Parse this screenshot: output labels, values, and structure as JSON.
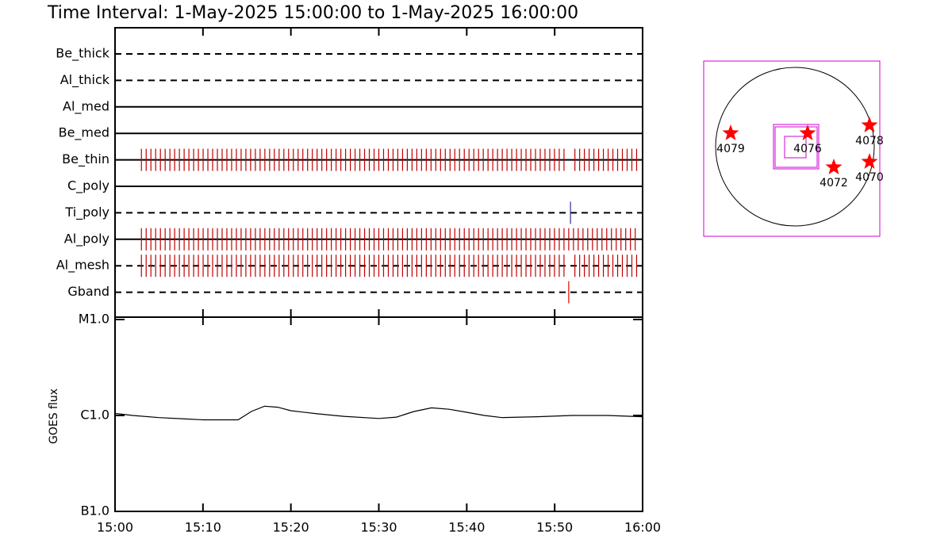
{
  "title": "Time Interval:  1-May-2025 15:00:00 to  1-May-2025 16:00:00",
  "chart_data": [
    {
      "type": "timeline",
      "xlim": [
        0,
        60
      ],
      "xticks": [
        0,
        10,
        20,
        30,
        40,
        50,
        60
      ],
      "filters": [
        {
          "name": "Be_thick",
          "style": "dashed",
          "runs": []
        },
        {
          "name": "Al_thick",
          "style": "dashed",
          "runs": []
        },
        {
          "name": "Al_med",
          "style": "solid",
          "runs": []
        },
        {
          "name": "Be_med",
          "style": "solid",
          "runs": []
        },
        {
          "name": "Be_thin",
          "style": "solid",
          "runs": [
            {
              "start": 3.0,
              "end": 51.2,
              "step": 0.54,
              "color": "#c00000"
            },
            {
              "start": 52.3,
              "end": 59.6,
              "step": 0.54,
              "color": "#c00000"
            }
          ]
        },
        {
          "name": "C_poly",
          "style": "solid",
          "runs": []
        },
        {
          "name": "Ti_poly",
          "style": "dashed",
          "runs": [
            {
              "start": 51.8,
              "end": 51.8,
              "step": 1,
              "color": "#303090"
            }
          ]
        },
        {
          "name": "Al_poly",
          "style": "solid",
          "runs": [
            {
              "start": 3.0,
              "end": 59.6,
              "step": 0.54,
              "color": "#c00000"
            }
          ]
        },
        {
          "name": "Al_mesh",
          "style": "dashed",
          "runs": [
            {
              "start": 3.0,
              "end": 51.2,
              "step": 0.54,
              "color": "#c00000"
            },
            {
              "start": 52.3,
              "end": 59.6,
              "step": 0.54,
              "color": "#c00000"
            }
          ]
        },
        {
          "name": "Gband",
          "style": "dashed",
          "runs": [
            {
              "start": 51.6,
              "end": 51.6,
              "step": 1,
              "color": "#e00000"
            }
          ]
        }
      ]
    },
    {
      "type": "line",
      "ylabel": "GOES flux",
      "log_scale": true,
      "color": "#000000",
      "xlim": [
        0,
        60
      ],
      "xticks": [
        {
          "value": 0,
          "label": "15:00"
        },
        {
          "value": 10,
          "label": "15:10"
        },
        {
          "value": 20,
          "label": "15:20"
        },
        {
          "value": 30,
          "label": "15:30"
        },
        {
          "value": 40,
          "label": "15:40"
        },
        {
          "value": 50,
          "label": "15:50"
        },
        {
          "value": 60,
          "label": "16:00"
        }
      ],
      "ylim": [
        1e-07,
        1e-05
      ],
      "yticks": [
        {
          "value": 1e-07,
          "label": "B1.0"
        },
        {
          "value": 1e-06,
          "label": "C1.0"
        },
        {
          "value": 1e-05,
          "label": "M1.0"
        }
      ],
      "x": [
        0,
        2,
        5,
        8,
        10,
        12,
        14,
        15.5,
        17,
        18.5,
        20,
        23,
        26,
        30,
        32,
        34,
        36,
        38,
        40,
        42,
        44,
        48,
        52,
        56,
        60
      ],
      "values": [
        1.05e-06,
        1e-06,
        9.5e-07,
        9.2e-07,
        9e-07,
        9e-07,
        9e-07,
        1.1e-06,
        1.25e-06,
        1.22e-06,
        1.12e-06,
        1.04e-06,
        9.8e-07,
        9.3e-07,
        9.6e-07,
        1.1e-06,
        1.2e-06,
        1.16e-06,
        1.08e-06,
        1e-06,
        9.5e-07,
        9.7e-07,
        1e-06,
        1e-06,
        9.7e-07
      ]
    }
  ],
  "map": {
    "regions": [
      "4079",
      "4076",
      "4078",
      "4072",
      "4070"
    ]
  }
}
